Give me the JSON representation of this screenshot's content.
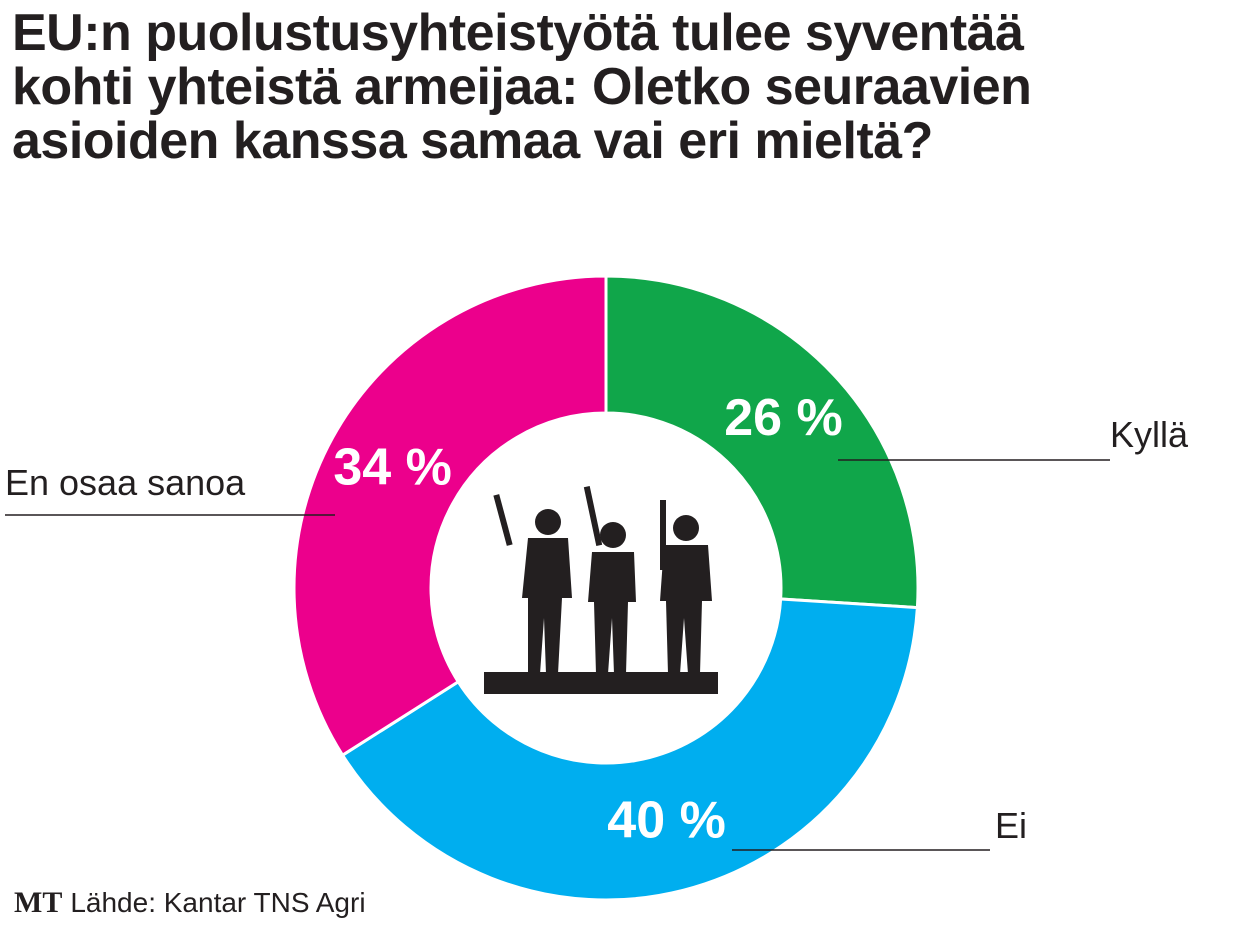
{
  "chart_data": {
    "type": "pie",
    "title": "EU:n puolustusyhteistyötä tulee syventää kohti yhteistä armeijaa: Oletko seuraavien asioiden kanssa samaa vai eri mieltä?",
    "categories": [
      "Kyllä",
      "Ei",
      "En osaa sanoa"
    ],
    "values": [
      26,
      40,
      34
    ],
    "value_labels": [
      "26 %",
      "40 %",
      "34 %"
    ],
    "colors": [
      "#10a64a",
      "#00aeef",
      "#ec008c"
    ],
    "donut": true,
    "logo": "MT",
    "source": "Lähde: Kantar TNS Agri"
  }
}
